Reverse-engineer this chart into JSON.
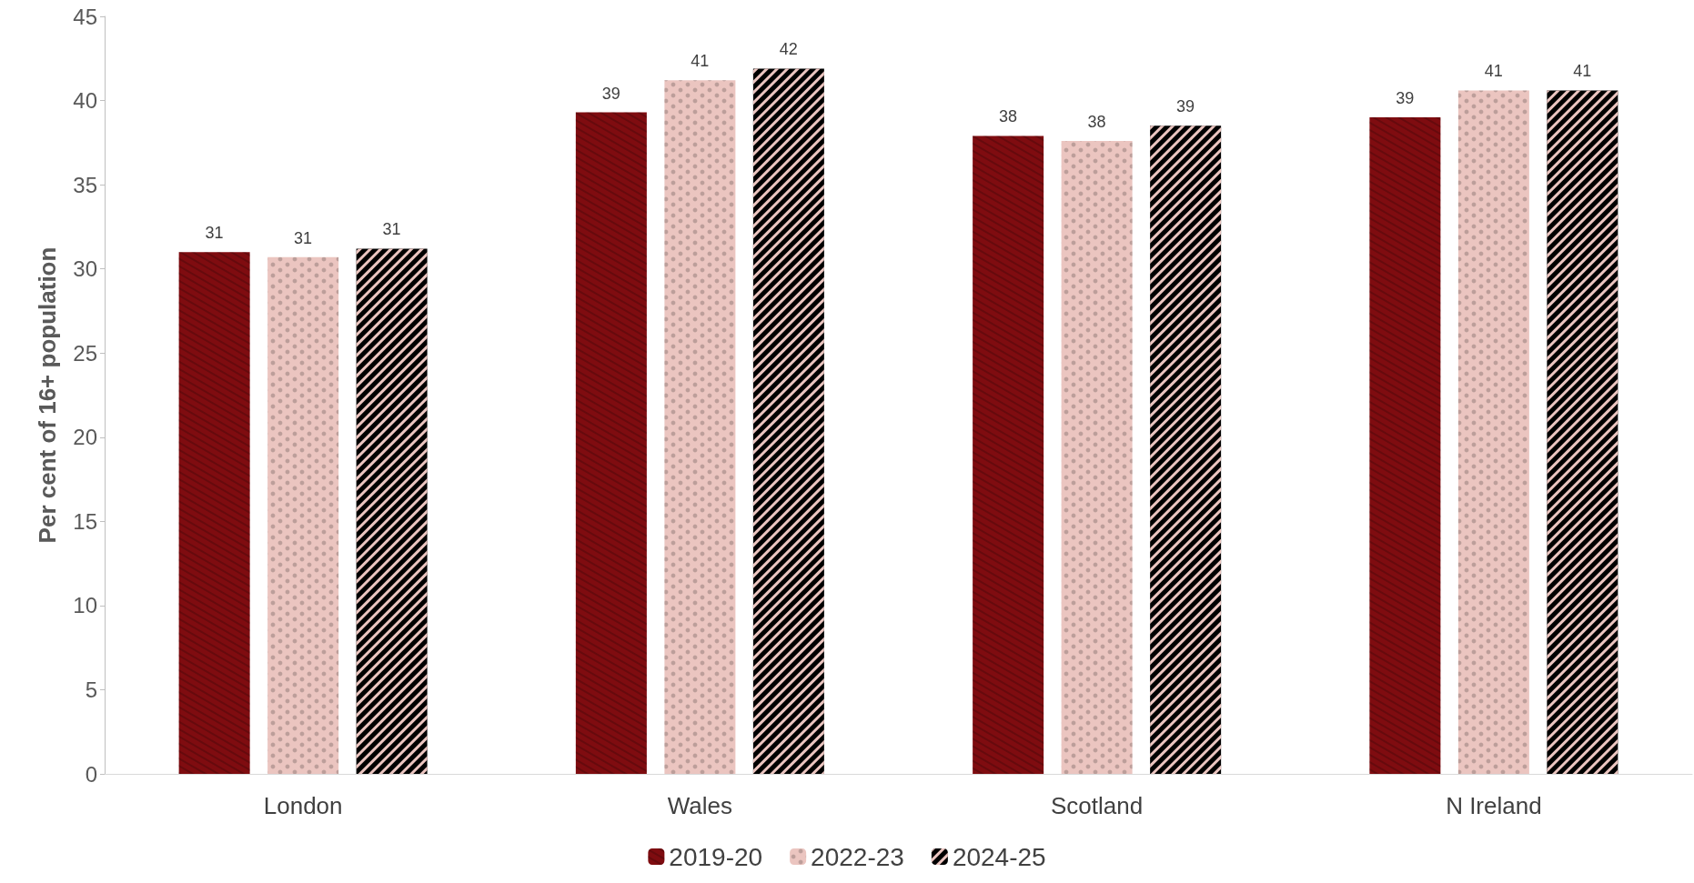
{
  "chart_data": {
    "type": "bar",
    "ylabel": "Per cent of 16+ population",
    "categories": [
      "London",
      "Wales",
      "Scotland",
      "N Ireland"
    ],
    "series": [
      {
        "name": "2019-20",
        "color": "#7f0c10",
        "values": [
          31.0,
          39.3,
          37.9,
          39.0
        ],
        "value_labels": [
          "31",
          "39",
          "38",
          "39"
        ]
      },
      {
        "name": "2022-23",
        "color": "#ebc5c0",
        "values": [
          30.7,
          41.2,
          37.6,
          40.6
        ],
        "value_labels": [
          "31",
          "41",
          "38",
          "41"
        ]
      },
      {
        "name": "2024-25",
        "color": "#000000",
        "values": [
          31.2,
          41.9,
          38.5,
          40.6
        ],
        "value_labels": [
          "31",
          "42",
          "39",
          "41"
        ]
      }
    ],
    "ylim": [
      0,
      45
    ],
    "yticks": [
      0,
      5,
      10,
      15,
      20,
      25,
      30,
      35,
      40,
      45
    ],
    "grid": false,
    "legend": "bottom"
  }
}
